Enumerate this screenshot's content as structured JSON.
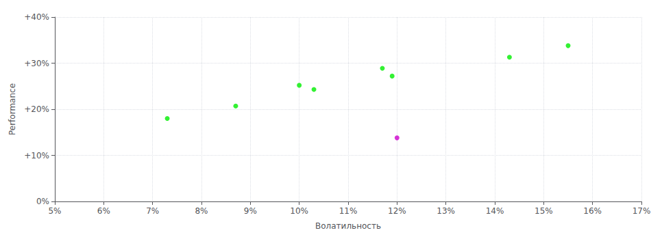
{
  "chart_data": {
    "type": "scatter",
    "xlabel": "Волатильность",
    "ylabel": "Performance",
    "xlim": [
      0.05,
      0.17
    ],
    "ylim": [
      0.0,
      0.4
    ],
    "xticks": [
      {
        "value": 0.05,
        "label": "5%"
      },
      {
        "value": 0.06,
        "label": "6%"
      },
      {
        "value": 0.07,
        "label": "7%"
      },
      {
        "value": 0.08,
        "label": "8%"
      },
      {
        "value": 0.09,
        "label": "9%"
      },
      {
        "value": 0.1,
        "label": "10%"
      },
      {
        "value": 0.11,
        "label": "11%"
      },
      {
        "value": 0.12,
        "label": "12%"
      },
      {
        "value": 0.13,
        "label": "13%"
      },
      {
        "value": 0.14,
        "label": "14%"
      },
      {
        "value": 0.15,
        "label": "15%"
      },
      {
        "value": 0.16,
        "label": "16%"
      },
      {
        "value": 0.17,
        "label": "17%"
      }
    ],
    "yticks": [
      {
        "value": 0.0,
        "label": "0%"
      },
      {
        "value": 0.1,
        "label": "+10%"
      },
      {
        "value": 0.2,
        "label": "+20%"
      },
      {
        "value": 0.3,
        "label": "+30%"
      },
      {
        "value": 0.4,
        "label": "+40%"
      }
    ],
    "grid": true,
    "series": [
      {
        "color": "#00ee00",
        "x": [
          0.073,
          0.087,
          0.1,
          0.103,
          0.117,
          0.119,
          0.143,
          0.155
        ],
        "values": [
          0.18,
          0.207,
          0.252,
          0.243,
          0.289,
          0.272,
          0.313,
          0.338
        ]
      },
      {
        "color": "#cc00cc",
        "x": [
          0.12
        ],
        "values": [
          0.138
        ]
      }
    ]
  }
}
